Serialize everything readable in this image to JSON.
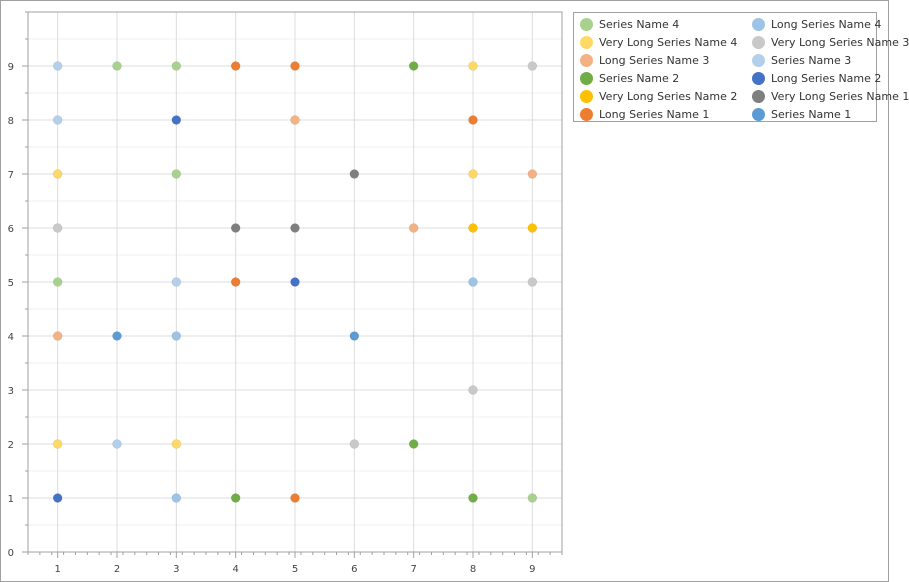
{
  "chart_data": {
    "type": "scatter",
    "title": "",
    "xlabel": "",
    "ylabel": "",
    "xlim": [
      0.5,
      9.5
    ],
    "ylim": [
      0,
      10
    ],
    "x_ticks": [
      1,
      2,
      3,
      4,
      5,
      6,
      7,
      8,
      9
    ],
    "y_ticks": [
      0,
      1,
      2,
      3,
      4,
      5,
      6,
      7,
      8,
      9
    ],
    "grid": true,
    "legend_position": "top-right outside plot",
    "series": [
      {
        "name": "Series Name 4",
        "color": "#a9d18e",
        "points": [
          [
            1,
            5
          ],
          [
            2,
            9
          ],
          [
            3,
            9
          ],
          [
            3,
            7
          ],
          [
            9,
            1
          ]
        ]
      },
      {
        "name": "Long Series Name 4",
        "color": "#9dc3e6",
        "points": [
          [
            3,
            1
          ],
          [
            3,
            4
          ],
          [
            8,
            5
          ]
        ]
      },
      {
        "name": "Very Long Series Name 4",
        "color": "#ffd966",
        "points": [
          [
            1,
            7
          ],
          [
            1,
            2
          ],
          [
            3,
            2
          ],
          [
            8,
            9
          ],
          [
            8,
            7
          ]
        ]
      },
      {
        "name": "Very Long Series Name 3",
        "color": "#c9c9c9",
        "points": [
          [
            1,
            6
          ],
          [
            6,
            2
          ],
          [
            8,
            3
          ],
          [
            9,
            9
          ],
          [
            9,
            5
          ]
        ]
      },
      {
        "name": "Long Series Name 3",
        "color": "#f4b183",
        "points": [
          [
            1,
            4
          ],
          [
            5,
            8
          ],
          [
            7,
            6
          ],
          [
            9,
            7
          ]
        ]
      },
      {
        "name": "Series Name 3",
        "color": "#b4cfea",
        "points": [
          [
            1,
            9
          ],
          [
            1,
            8
          ],
          [
            2,
            2
          ],
          [
            3,
            5
          ]
        ]
      },
      {
        "name": "Series Name 2",
        "color": "#70ad47",
        "points": [
          [
            4,
            1
          ],
          [
            7,
            9
          ],
          [
            7,
            2
          ],
          [
            8,
            1
          ]
        ]
      },
      {
        "name": "Long Series Name 2",
        "color": "#4472c4",
        "points": [
          [
            1,
            1
          ],
          [
            3,
            8
          ],
          [
            5,
            5
          ]
        ]
      },
      {
        "name": "Very Long Series Name 2",
        "color": "#ffc000",
        "points": [
          [
            8,
            6
          ],
          [
            9,
            6
          ]
        ]
      },
      {
        "name": "Very Long Series Name 1",
        "color": "#7f7f7f",
        "points": [
          [
            4,
            6
          ],
          [
            5,
            6
          ],
          [
            6,
            7
          ]
        ]
      },
      {
        "name": "Long Series Name 1",
        "color": "#ed7d31",
        "points": [
          [
            4,
            9
          ],
          [
            5,
            9
          ],
          [
            4,
            5
          ],
          [
            5,
            1
          ],
          [
            8,
            8
          ]
        ]
      },
      {
        "name": "Series Name 1",
        "color": "#5b9bd5",
        "points": [
          [
            2,
            4
          ],
          [
            6,
            4
          ]
        ]
      }
    ]
  },
  "legend": {
    "items": [
      {
        "label": "Series Name 4",
        "color": "#a9d18e"
      },
      {
        "label": "Long Series Name 4",
        "color": "#9dc3e6"
      },
      {
        "label": "Very Long Series Name 4",
        "color": "#ffd966"
      },
      {
        "label": "Very Long Series Name 3",
        "color": "#c9c9c9"
      },
      {
        "label": "Long Series Name 3",
        "color": "#f4b183"
      },
      {
        "label": "Series Name 3",
        "color": "#b4cfea"
      },
      {
        "label": "Series Name 2",
        "color": "#70ad47"
      },
      {
        "label": "Long Series Name 2",
        "color": "#4472c4"
      },
      {
        "label": "Very Long Series Name 2",
        "color": "#ffc000"
      },
      {
        "label": "Very Long Series Name 1",
        "color": "#7f7f7f"
      },
      {
        "label": "Long Series Name 1",
        "color": "#ed7d31"
      },
      {
        "label": "Series Name 1",
        "color": "#5b9bd5"
      }
    ]
  }
}
